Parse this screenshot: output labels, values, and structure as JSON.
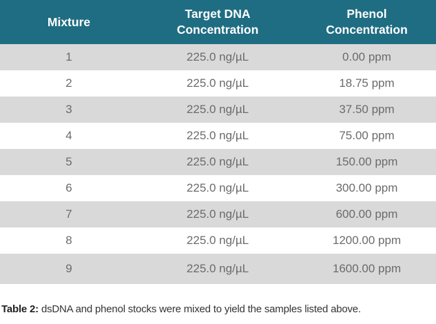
{
  "table": {
    "headers": {
      "mixture": "Mixture",
      "target_dna_line1": "Target DNA",
      "target_dna_line2": "Concentration",
      "phenol_line1": "Phenol",
      "phenol_line2": "Concentration"
    },
    "rows": [
      {
        "mixture": "1",
        "dna": "225.0 ng/µL",
        "phenol": "0.00 ppm"
      },
      {
        "mixture": "2",
        "dna": "225.0 ng/µL",
        "phenol": "18.75 ppm"
      },
      {
        "mixture": "3",
        "dna": "225.0 ng/µL",
        "phenol": "37.50 ppm"
      },
      {
        "mixture": "4",
        "dna": "225.0 ng/µL",
        "phenol": "75.00 ppm"
      },
      {
        "mixture": "5",
        "dna": "225.0 ng/µL",
        "phenol": "150.00 ppm"
      },
      {
        "mixture": "6",
        "dna": "225.0 ng/µL",
        "phenol": "300.00 ppm"
      },
      {
        "mixture": "7",
        "dna": "225.0 ng/µL",
        "phenol": "600.00 ppm"
      },
      {
        "mixture": "8",
        "dna": "225.0 ng/µL",
        "phenol": "1200.00 ppm"
      },
      {
        "mixture": "9",
        "dna": "225.0 ng/µL",
        "phenol": "1600.00 ppm"
      }
    ]
  },
  "caption": {
    "label": "Table 2:",
    "text": " dsDNA and phenol stocks were mixed to yield the samples listed above."
  },
  "colors": {
    "header_bg": "#1f6d82",
    "stripe_bg": "#d9d9d9"
  }
}
